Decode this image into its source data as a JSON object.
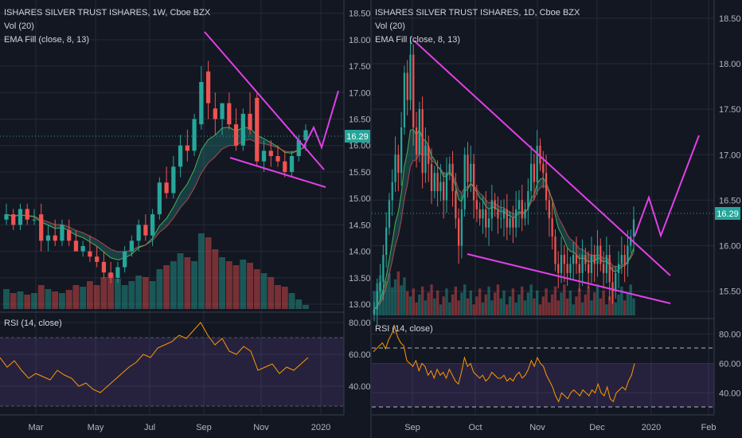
{
  "chart_data": [
    {
      "type": "candlestick",
      "panel": "left",
      "legend": [
        "ISHARES SILVER TRUST ISHARES, 1W, Cboe BZX",
        "Vol (20)",
        "EMA Fill (close, 8, 13)"
      ],
      "rsi_label": "RSI (14, close)",
      "price_ticks": [
        "18.50",
        "18.00",
        "17.50",
        "17.00",
        "16.50",
        "16.00",
        "15.50",
        "15.00",
        "14.50",
        "14.00",
        "13.50",
        "13.00"
      ],
      "rsi_ticks": [
        "80.00",
        "60.00",
        "40.00"
      ],
      "x_ticks": [
        "Mar",
        "May",
        "Jul",
        "Sep",
        "Nov",
        "2020"
      ],
      "last_price": "16.29",
      "ylim": [
        12.85,
        18.75
      ],
      "candles": [
        [
          14.6,
          14.9,
          14.5,
          14.7
        ],
        [
          14.7,
          14.8,
          14.4,
          14.5
        ],
        [
          14.5,
          14.9,
          14.4,
          14.8
        ],
        [
          14.8,
          14.9,
          14.5,
          14.6
        ],
        [
          14.6,
          14.8,
          14.5,
          14.6
        ],
        [
          14.7,
          14.9,
          14.0,
          14.2
        ],
        [
          14.2,
          14.5,
          14.0,
          14.3
        ],
        [
          14.3,
          14.6,
          14.1,
          14.2
        ],
        [
          14.2,
          14.6,
          14.1,
          14.5
        ],
        [
          14.4,
          14.6,
          14.1,
          14.2
        ],
        [
          14.2,
          14.4,
          14.0,
          14.0
        ],
        [
          14.0,
          14.2,
          13.9,
          14.1
        ],
        [
          14.0,
          14.3,
          13.8,
          13.9
        ],
        [
          13.9,
          14.1,
          13.7,
          13.8
        ],
        [
          13.8,
          14.0,
          13.5,
          13.6
        ],
        [
          13.6,
          13.8,
          13.4,
          13.5
        ],
        [
          13.5,
          13.8,
          13.4,
          13.7
        ],
        [
          13.7,
          14.1,
          13.6,
          14.0
        ],
        [
          14.0,
          14.3,
          13.9,
          14.2
        ],
        [
          14.2,
          14.6,
          14.0,
          14.5
        ],
        [
          14.5,
          14.7,
          14.2,
          14.3
        ],
        [
          14.3,
          14.8,
          14.1,
          14.7
        ],
        [
          14.7,
          15.4,
          14.6,
          15.3
        ],
        [
          15.3,
          15.6,
          15.0,
          15.1
        ],
        [
          15.1,
          15.8,
          15.0,
          15.6
        ],
        [
          15.6,
          16.2,
          15.4,
          16.0
        ],
        [
          16.0,
          16.3,
          15.7,
          15.9
        ],
        [
          15.9,
          16.6,
          15.8,
          16.5
        ],
        [
          16.4,
          17.5,
          16.3,
          17.2
        ],
        [
          17.4,
          17.6,
          16.5,
          16.8
        ],
        [
          16.7,
          17.0,
          16.2,
          16.5
        ],
        [
          16.5,
          16.8,
          16.2,
          16.8
        ],
        [
          16.8,
          17.0,
          16.3,
          16.4
        ],
        [
          16.4,
          16.7,
          15.9,
          16.0
        ],
        [
          16.0,
          16.7,
          15.9,
          16.6
        ],
        [
          16.6,
          17.0,
          16.2,
          16.3
        ],
        [
          16.9,
          17.0,
          15.6,
          15.7
        ],
        [
          15.7,
          16.1,
          15.5,
          15.9
        ],
        [
          15.9,
          16.1,
          15.6,
          15.8
        ],
        [
          15.8,
          16.0,
          15.6,
          15.7
        ],
        [
          15.7,
          15.9,
          15.4,
          15.5
        ],
        [
          15.5,
          15.9,
          15.4,
          15.8
        ],
        [
          15.8,
          16.2,
          15.7,
          16.1
        ],
        [
          16.1,
          16.4,
          15.9,
          16.29
        ]
      ],
      "volumes": [
        0.25,
        0.2,
        0.22,
        0.18,
        0.2,
        0.3,
        0.25,
        0.22,
        0.2,
        0.24,
        0.3,
        0.28,
        0.35,
        0.3,
        0.4,
        0.45,
        0.38,
        0.3,
        0.35,
        0.42,
        0.4,
        0.35,
        0.5,
        0.55,
        0.6,
        0.7,
        0.65,
        0.6,
        0.95,
        0.9,
        0.75,
        0.65,
        0.6,
        0.55,
        0.62,
        0.58,
        0.5,
        0.45,
        0.4,
        0.3,
        0.28,
        0.2,
        0.12,
        0.05
      ],
      "rsi": [
        58,
        52,
        56,
        50,
        45,
        48,
        46,
        44,
        50,
        47,
        45,
        40,
        42,
        38,
        36,
        40,
        44,
        48,
        52,
        55,
        60,
        58,
        64,
        66,
        68,
        72,
        70,
        75,
        80,
        72,
        66,
        70,
        62,
        60,
        65,
        62,
        50,
        52,
        54,
        48,
        52,
        50,
        54,
        58
      ]
    },
    {
      "type": "candlestick",
      "panel": "right",
      "legend": [
        "ISHARES SILVER TRUST ISHARES, 1D, Cboe BZX",
        "Vol (20)",
        "EMA Fill (close, 8, 13)"
      ],
      "rsi_label": "RSI (14, close)",
      "price_ticks": [
        "18.50",
        "18.00",
        "17.50",
        "17.00",
        "16.50",
        "16.00",
        "15.50"
      ],
      "rsi_ticks": [
        "80.00",
        "60.00",
        "40.00"
      ],
      "x_ticks": [
        "Sep",
        "Oct",
        "Nov",
        "Dec",
        "2020",
        "Feb"
      ],
      "last_price": "16.29",
      "ylim": [
        15.2,
        18.7
      ],
      "closes": [
        15.3,
        15.5,
        15.6,
        15.9,
        16.2,
        16.5,
        16.7,
        17.0,
        16.8,
        17.3,
        17.9,
        17.6,
        18.1,
        17.3,
        17.0,
        17.5,
        16.8,
        17.1,
        16.9,
        16.6,
        16.8,
        16.6,
        16.7,
        16.5,
        16.8,
        16.9,
        16.6,
        16.3,
        16.0,
        16.4,
        17.0,
        16.7,
        16.9,
        16.5,
        16.4,
        16.3,
        16.4,
        16.2,
        16.3,
        16.5,
        16.4,
        16.3,
        16.3,
        16.4,
        16.2,
        16.3,
        16.2,
        16.4,
        16.5,
        16.3,
        16.4,
        16.6,
        16.9,
        16.7,
        17.1,
        16.9,
        16.8,
        16.5,
        16.3,
        16.1,
        15.8,
        15.7,
        15.9,
        15.8,
        15.7,
        15.8,
        15.9,
        15.8,
        15.7,
        15.9,
        15.8,
        15.7,
        15.9,
        15.8,
        16.0,
        15.8,
        15.7,
        15.9,
        15.6,
        15.5,
        15.7,
        15.8,
        15.9,
        15.8,
        16.0,
        16.1,
        16.29
      ],
      "rsi": [
        68,
        70,
        72,
        74,
        70,
        76,
        80,
        85,
        78,
        74,
        72,
        62,
        60,
        58,
        62,
        55,
        60,
        58,
        52,
        55,
        50,
        56,
        52,
        54,
        50,
        56,
        52,
        48,
        46,
        54,
        64,
        58,
        60,
        54,
        52,
        50,
        52,
        48,
        50,
        54,
        52,
        50,
        50,
        52,
        48,
        50,
        48,
        52,
        54,
        50,
        52,
        56,
        62,
        58,
        64,
        60,
        58,
        52,
        48,
        44,
        38,
        34,
        40,
        38,
        36,
        40,
        42,
        40,
        38,
        42,
        40,
        38,
        42,
        40,
        46,
        40,
        38,
        44,
        36,
        34,
        40,
        42,
        44,
        42,
        48,
        52,
        60
      ]
    }
  ]
}
